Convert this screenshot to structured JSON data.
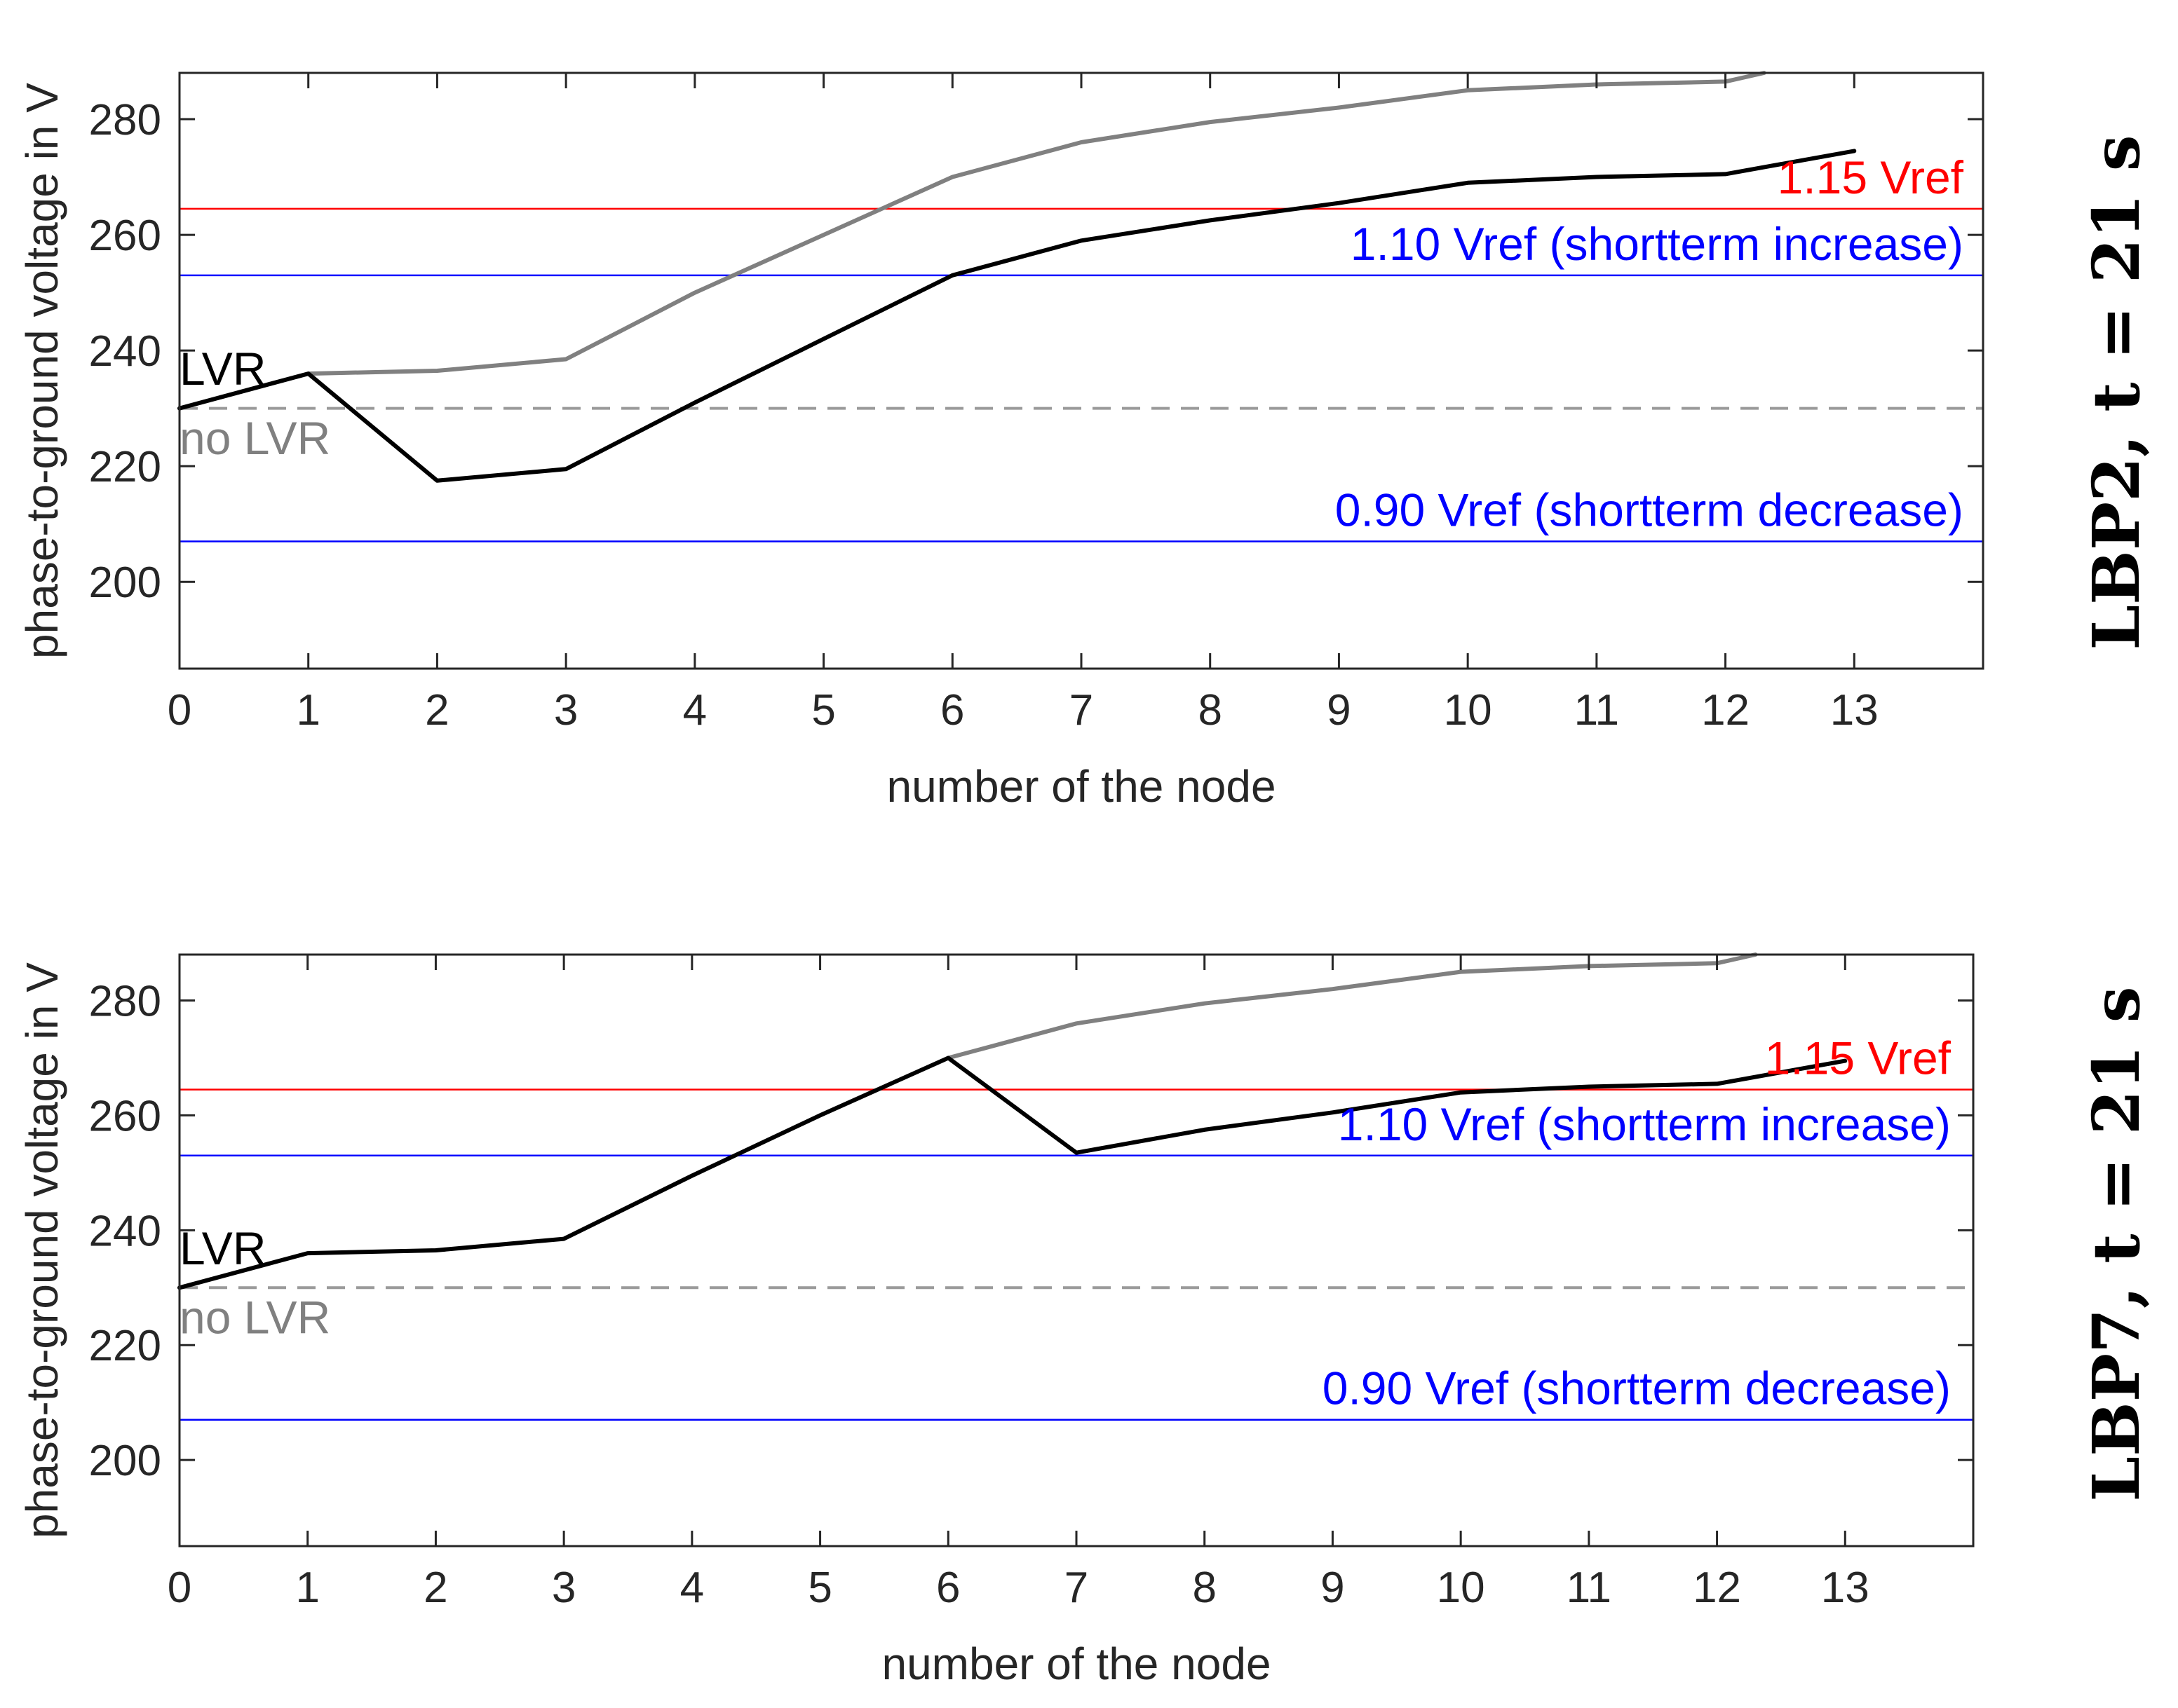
{
  "colors": {
    "lvr": "#000000",
    "no_lvr": "#808080",
    "red_ref": "#ff0000",
    "blue_ref": "#0000ff",
    "baseline": "#9a9a9a",
    "axis": "#262626"
  },
  "chart_data": [
    {
      "type": "line",
      "panel_title": "LBP2, t = 21 s",
      "xlabel": "number of the node",
      "ylabel": "phase-to-ground voltage in V",
      "xlim": [
        0,
        14
      ],
      "ylim": [
        185,
        288
      ],
      "xticks": [
        0,
        1,
        2,
        3,
        4,
        5,
        6,
        7,
        8,
        9,
        10,
        11,
        12,
        13
      ],
      "yticks": [
        200,
        220,
        240,
        260,
        280
      ],
      "series": [
        {
          "name": "no LVR",
          "color": "#808080",
          "x": [
            0,
            1,
            2,
            3,
            4,
            5,
            6,
            7,
            8,
            9,
            10,
            11,
            12,
            12.3
          ],
          "y": [
            230,
            236,
            236.5,
            238.5,
            250,
            260,
            270,
            276,
            279.5,
            282,
            285,
            286,
            286.5,
            288
          ]
        },
        {
          "name": "LVR",
          "color": "#000000",
          "x": [
            0,
            1,
            2,
            3,
            4,
            5,
            6,
            7,
            8,
            9,
            10,
            11,
            12,
            13
          ],
          "y": [
            230,
            236,
            217.5,
            219.5,
            231,
            242,
            253,
            259,
            262.5,
            265.5,
            269,
            270,
            270.5,
            274.5
          ]
        }
      ],
      "hlines": [
        {
          "y": 264.5,
          "color": "#ff0000",
          "style": "solid",
          "label": "1.15 Vref"
        },
        {
          "y": 253,
          "color": "#0000ff",
          "style": "solid",
          "label": "1.10 Vref (shortterm increase)"
        },
        {
          "y": 230,
          "color": "#9a9a9a",
          "style": "dashed",
          "label": ""
        },
        {
          "y": 207,
          "color": "#0000ff",
          "style": "solid",
          "label": "0.90 Vref (shortterm decrease)"
        }
      ],
      "annotations": [
        {
          "text": "LVR",
          "x": 0,
          "y": 236,
          "color": "#000000"
        },
        {
          "text": "no LVR",
          "x": 0,
          "y": 224,
          "color": "#808080"
        }
      ]
    },
    {
      "type": "line",
      "panel_title": "LBP7, t = 21 s",
      "xlabel": "number of the node",
      "ylabel": "phase-to-ground voltage in V",
      "xlim": [
        0,
        14
      ],
      "ylim": [
        185,
        288
      ],
      "xticks": [
        0,
        1,
        2,
        3,
        4,
        5,
        6,
        7,
        8,
        9,
        10,
        11,
        12,
        13
      ],
      "yticks": [
        200,
        220,
        240,
        260,
        280
      ],
      "series": [
        {
          "name": "no LVR",
          "color": "#808080",
          "x": [
            6,
            7,
            8,
            9,
            10,
            11,
            12,
            12.3
          ],
          "y": [
            270,
            276,
            279.5,
            282,
            285,
            286,
            286.5,
            288
          ]
        },
        {
          "name": "LVR",
          "color": "#000000",
          "x": [
            0,
            1,
            2,
            3,
            4,
            5,
            6,
            7,
            8,
            9,
            10,
            11,
            12,
            13
          ],
          "y": [
            230,
            236,
            236.5,
            238.5,
            249.5,
            260,
            270,
            253.5,
            257.5,
            260.5,
            264,
            265,
            265.5,
            269.5
          ]
        }
      ],
      "hlines": [
        {
          "y": 264.5,
          "color": "#ff0000",
          "style": "solid",
          "label": "1.15 Vref"
        },
        {
          "y": 253,
          "color": "#0000ff",
          "style": "solid",
          "label": "1.10 Vref (shortterm increase)"
        },
        {
          "y": 230,
          "color": "#9a9a9a",
          "style": "dashed",
          "label": ""
        },
        {
          "y": 207,
          "color": "#0000ff",
          "style": "solid",
          "label": "0.90 Vref (shortterm decrease)"
        }
      ],
      "annotations": [
        {
          "text": "LVR",
          "x": 0,
          "y": 236,
          "color": "#000000"
        },
        {
          "text": "no LVR",
          "x": 0,
          "y": 224,
          "color": "#808080"
        }
      ]
    }
  ]
}
